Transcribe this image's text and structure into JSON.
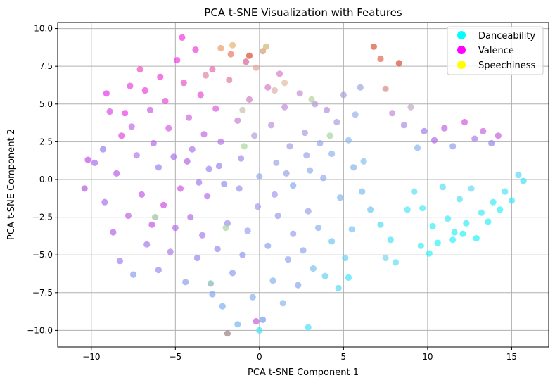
{
  "chart_data": {
    "type": "scatter",
    "title": "PCA t-SNE Visualization with Features",
    "xlabel": "PCA t-SNE Component 1",
    "ylabel": "PCA t-SNE Component 2",
    "xlim": [
      -12,
      17.2
    ],
    "ylim": [
      -11.1,
      10.4
    ],
    "xticks": [
      -10,
      -5,
      0,
      5,
      10,
      15
    ],
    "yticks": [
      -10.0,
      -7.5,
      -5.0,
      -2.5,
      0.0,
      2.5,
      5.0,
      7.5,
      10.0
    ],
    "xtick_labels": [
      "−10",
      "−5",
      "0",
      "5",
      "10",
      "15"
    ],
    "ytick_labels": [
      "−10.0",
      "−7.5",
      "−5.0",
      "−2.5",
      "0.0",
      "2.5",
      "5.0",
      "7.5",
      "10.0"
    ],
    "grid": true,
    "legend_position": "top-right",
    "legend": [
      {
        "label": "Danceability",
        "color": "#00ffff"
      },
      {
        "label": "Valence",
        "color": "#ff00ff"
      },
      {
        "label": "Speechiness",
        "color": "#ffff00"
      }
    ],
    "point_alpha": 0.7,
    "series": [
      {
        "name": "",
        "points": [
          [
            -10.2,
            1.3,
            "#c64fe6"
          ],
          [
            -10.4,
            -0.6,
            "#b05be0"
          ],
          [
            -9.8,
            1.1,
            "#a86ee8"
          ],
          [
            -9.3,
            2.0,
            "#9a7ef0"
          ],
          [
            -9.1,
            5.7,
            "#e23be9"
          ],
          [
            -8.9,
            4.5,
            "#d450e4"
          ],
          [
            -8.5,
            0.4,
            "#bb5ce9"
          ],
          [
            -8.2,
            2.9,
            "#e04ad6"
          ],
          [
            -8.0,
            4.4,
            "#f03ce8"
          ],
          [
            -7.7,
            6.2,
            "#e548d8"
          ],
          [
            -7.6,
            3.5,
            "#c36ee4"
          ],
          [
            -7.3,
            1.6,
            "#b47bec"
          ],
          [
            -7.1,
            7.3,
            "#f050c0"
          ],
          [
            -6.8,
            5.9,
            "#ea45e0"
          ],
          [
            -6.5,
            4.6,
            "#c85fe2"
          ],
          [
            -6.3,
            2.4,
            "#b76aea"
          ],
          [
            -6.0,
            0.8,
            "#9b82ee"
          ],
          [
            -5.9,
            6.8,
            "#f140d8"
          ],
          [
            -5.6,
            5.2,
            "#e74bd6"
          ],
          [
            -5.4,
            3.4,
            "#d45ce2"
          ],
          [
            -5.1,
            1.5,
            "#aa74ea"
          ],
          [
            -4.9,
            7.9,
            "#f23ce8"
          ],
          [
            -4.6,
            9.4,
            "#f538de"
          ],
          [
            -4.5,
            6.4,
            "#ea56c8"
          ],
          [
            -4.2,
            4.1,
            "#cf66e0"
          ],
          [
            -4.0,
            2.0,
            "#a978ed"
          ],
          [
            -3.8,
            8.6,
            "#ec42da"
          ],
          [
            -3.5,
            5.6,
            "#e44fd4"
          ],
          [
            -3.3,
            3.0,
            "#c468e6"
          ],
          [
            -3.0,
            0.7,
            "#9d84ef"
          ],
          [
            -2.8,
            7.3,
            "#e86ab0"
          ],
          [
            -2.6,
            4.7,
            "#d75ce0"
          ],
          [
            -2.3,
            2.5,
            "#bb73ea"
          ],
          [
            -2.1,
            -0.3,
            "#8f92f2"
          ],
          [
            -1.8,
            6.6,
            "#e17a9f"
          ],
          [
            -1.6,
            8.9,
            "#e8b070"
          ],
          [
            -1.3,
            3.9,
            "#c982d2"
          ],
          [
            -1.1,
            1.4,
            "#a58ae8"
          ],
          [
            -0.8,
            7.8,
            "#dc5f97"
          ],
          [
            -0.6,
            5.3,
            "#cf7fc4"
          ],
          [
            -0.3,
            2.9,
            "#b3a0d8"
          ],
          [
            0.0,
            0.2,
            "#96a8ea"
          ],
          [
            0.2,
            8.5,
            "#d0a070"
          ],
          [
            0.5,
            6.1,
            "#d87ac4"
          ],
          [
            0.7,
            3.6,
            "#b993d8"
          ],
          [
            1.0,
            1.1,
            "#a0a4e8"
          ],
          [
            1.2,
            7.0,
            "#d480c6"
          ],
          [
            1.5,
            4.8,
            "#bf8ed8"
          ],
          [
            1.8,
            2.2,
            "#a2a0e6"
          ],
          [
            2.0,
            -0.4,
            "#8aaaf2"
          ],
          [
            2.4,
            5.7,
            "#c48fd0"
          ],
          [
            2.7,
            3.1,
            "#a89ee2"
          ],
          [
            3.0,
            0.6,
            "#8fb0ee"
          ],
          [
            3.3,
            5.0,
            "#b498d6"
          ],
          [
            3.6,
            2.4,
            "#9aa8e8"
          ],
          [
            4.0,
            4.6,
            "#b88fd6"
          ],
          [
            4.3,
            1.7,
            "#90b4ee"
          ],
          [
            4.6,
            3.8,
            "#a4a2e0"
          ],
          [
            5.0,
            5.6,
            "#a9a0da"
          ],
          [
            5.3,
            2.6,
            "#8ebaf0"
          ],
          [
            5.7,
            4.3,
            "#9cb1e6"
          ],
          [
            6.0,
            6.1,
            "#a2a6dd"
          ],
          [
            6.2,
            1.2,
            "#86c2f2"
          ],
          [
            6.8,
            8.8,
            "#d7553d"
          ],
          [
            7.2,
            8.0,
            "#e06a52"
          ],
          [
            7.5,
            6.0,
            "#d68a7f"
          ],
          [
            7.9,
            4.4,
            "#c28bd6"
          ],
          [
            8.3,
            7.7,
            "#d84d33"
          ],
          [
            8.6,
            3.6,
            "#aa92e0"
          ],
          [
            9.0,
            4.8,
            "#c5a8c8"
          ],
          [
            9.4,
            2.1,
            "#8bb5ef"
          ],
          [
            9.8,
            3.2,
            "#a27ee8"
          ],
          [
            10.4,
            2.6,
            "#b06ee2"
          ],
          [
            11.0,
            3.4,
            "#c467e0"
          ],
          [
            11.5,
            2.2,
            "#8f9cf0"
          ],
          [
            12.2,
            3.8,
            "#d457dc"
          ],
          [
            12.8,
            2.7,
            "#ab7ce8"
          ],
          [
            13.3,
            3.2,
            "#c66ad7"
          ],
          [
            13.8,
            2.4,
            "#9a84ee"
          ],
          [
            14.2,
            2.9,
            "#c85fe0"
          ],
          [
            8.8,
            -2.0,
            "#4be7f6"
          ],
          [
            9.2,
            -0.8,
            "#5ae0f6"
          ],
          [
            9.7,
            -1.9,
            "#48ecf4"
          ],
          [
            10.3,
            -3.1,
            "#36f0f7"
          ],
          [
            10.6,
            -4.2,
            "#2cf2f8"
          ],
          [
            10.9,
            -0.5,
            "#58e0f6"
          ],
          [
            11.2,
            -2.6,
            "#44eaf6"
          ],
          [
            11.6,
            -3.5,
            "#2ef2f6"
          ],
          [
            11.9,
            -1.3,
            "#52e2f6"
          ],
          [
            12.3,
            -2.9,
            "#3ae8f6"
          ],
          [
            12.6,
            -0.6,
            "#6ad8f4"
          ],
          [
            12.9,
            -3.9,
            "#22f4f6"
          ],
          [
            13.2,
            -2.2,
            "#44e8f6"
          ],
          [
            13.6,
            -2.8,
            "#2ef0f6"
          ],
          [
            13.9,
            -1.5,
            "#3eeaf6"
          ],
          [
            14.3,
            -2.0,
            "#2ef2f6"
          ],
          [
            14.6,
            -0.8,
            "#50e2f6"
          ],
          [
            15.0,
            -1.4,
            "#3ae8f6"
          ],
          [
            15.4,
            0.3,
            "#5ad8f4"
          ],
          [
            15.7,
            -0.1,
            "#4adff4"
          ],
          [
            7.2,
            -3.0,
            "#56dcf4"
          ],
          [
            7.8,
            -4.0,
            "#46e5f6"
          ],
          [
            7.5,
            -5.2,
            "#7ad8ec"
          ],
          [
            8.1,
            -5.5,
            "#5ee0f0"
          ],
          [
            9.6,
            -4.4,
            "#38eef6"
          ],
          [
            10.1,
            -4.9,
            "#2ef2f7"
          ],
          [
            11.5,
            -4.0,
            "#30f0f7"
          ],
          [
            12.1,
            -3.6,
            "#2cf2f6"
          ],
          [
            6.6,
            -2.0,
            "#72c6f0"
          ],
          [
            6.1,
            -0.8,
            "#80bcf0"
          ],
          [
            -9.2,
            -1.5,
            "#a772ea"
          ],
          [
            -8.7,
            -3.5,
            "#b664e6"
          ],
          [
            -8.3,
            -5.4,
            "#9f82ee"
          ],
          [
            -7.8,
            -2.4,
            "#bd63e6"
          ],
          [
            -7.5,
            -6.3,
            "#8c9ef0"
          ],
          [
            -7.0,
            -1.0,
            "#c25ee4"
          ],
          [
            -6.7,
            -4.3,
            "#a77aea"
          ],
          [
            -6.4,
            -3.0,
            "#c658e4"
          ],
          [
            -6.0,
            -6.0,
            "#9890ef"
          ],
          [
            -5.7,
            -1.7,
            "#d04ee2"
          ],
          [
            -5.3,
            -4.8,
            "#a97ae8"
          ],
          [
            -5.0,
            -3.2,
            "#b96fe8"
          ],
          [
            -4.7,
            -0.6,
            "#cf56e2"
          ],
          [
            -4.4,
            -6.8,
            "#8e9ef0"
          ],
          [
            -4.1,
            -2.5,
            "#b06ee8"
          ],
          [
            -3.7,
            -5.2,
            "#9a88ee"
          ],
          [
            -3.4,
            -3.7,
            "#a97eea"
          ],
          [
            -3.1,
            -1.1,
            "#b86ae8"
          ],
          [
            -2.8,
            -7.6,
            "#86a6f2"
          ],
          [
            -2.5,
            -4.6,
            "#9b8cee"
          ],
          [
            -2.2,
            -8.4,
            "#7fb0f2"
          ],
          [
            -1.9,
            -2.9,
            "#9d90ee"
          ],
          [
            -1.6,
            -6.2,
            "#8c9ef0"
          ],
          [
            -1.3,
            -9.6,
            "#7ab6f2"
          ],
          [
            -1.0,
            -5.0,
            "#9296ee"
          ],
          [
            -0.7,
            -3.4,
            "#98a2ee"
          ],
          [
            -0.4,
            -7.8,
            "#84b2ee"
          ],
          [
            -0.1,
            -1.8,
            "#a49aea"
          ],
          [
            0.2,
            -9.3,
            "#7a9cf0"
          ],
          [
            0.5,
            -4.4,
            "#8fa4ee"
          ],
          [
            0.8,
            -6.7,
            "#86b6ee"
          ],
          [
            1.1,
            -2.4,
            "#9c9cea"
          ],
          [
            1.4,
            -8.2,
            "#8cb8ec"
          ],
          [
            1.7,
            -5.3,
            "#90a6ee"
          ],
          [
            2.0,
            -3.6,
            "#98a0ec"
          ],
          [
            2.3,
            -7.0,
            "#8aa8f0"
          ],
          [
            2.6,
            -4.7,
            "#8fa8ee"
          ],
          [
            2.9,
            -2.1,
            "#9aa4ea"
          ],
          [
            3.2,
            -5.9,
            "#82c0ee"
          ],
          [
            3.5,
            -3.2,
            "#8ab4f0"
          ],
          [
            3.9,
            -6.4,
            "#64d2f2"
          ],
          [
            4.3,
            -4.1,
            "#74c6f2"
          ],
          [
            4.7,
            -7.2,
            "#56dcf4"
          ],
          [
            5.1,
            -5.2,
            "#66d4f2"
          ],
          [
            5.5,
            -3.3,
            "#7ac4f0"
          ],
          [
            2.9,
            -9.8,
            "#48e6f6"
          ],
          [
            0.0,
            -10.0,
            "#44e4f6"
          ],
          [
            -1.9,
            -10.2,
            "#9a8080"
          ],
          [
            -0.2,
            -9.4,
            "#c65ce0"
          ],
          [
            5.3,
            -6.5,
            "#40e6f6"
          ],
          [
            -4.3,
            1.2,
            "#b266e6"
          ],
          [
            -3.6,
            -0.2,
            "#a77aea"
          ],
          [
            -2.4,
            0.9,
            "#9e84ec"
          ],
          [
            -1.2,
            -0.6,
            "#9a94ec"
          ],
          [
            1.6,
            0.4,
            "#9aa4e8"
          ],
          [
            2.8,
            1.6,
            "#9ea4e6"
          ],
          [
            3.8,
            0.1,
            "#92aeee"
          ],
          [
            4.8,
            -1.2,
            "#86b6f0"
          ],
          [
            5.6,
            0.8,
            "#8cb4ee"
          ],
          [
            0.9,
            -1.0,
            "#a69ae8"
          ],
          [
            -0.6,
            8.2,
            "#d74e2e"
          ],
          [
            -0.2,
            7.4,
            "#e2a4a0"
          ],
          [
            0.4,
            8.8,
            "#d4b470"
          ],
          [
            -1.7,
            8.3,
            "#e87a6a"
          ],
          [
            -2.3,
            8.7,
            "#ee9d6c"
          ],
          [
            1.5,
            6.4,
            "#e2bca0"
          ],
          [
            -3.2,
            6.9,
            "#e482a8"
          ],
          [
            0.9,
            5.9,
            "#d9b3a8"
          ],
          [
            -1.0,
            4.6,
            "#c8c0b0"
          ],
          [
            3.1,
            5.3,
            "#b8d0a0"
          ],
          [
            -2.0,
            -3.2,
            "#a8d8a0"
          ],
          [
            -0.9,
            2.2,
            "#a8d89a"
          ],
          [
            4.2,
            2.9,
            "#a6d49c"
          ],
          [
            -6.2,
            -2.5,
            "#9cc09c"
          ],
          [
            -2.9,
            -6.9,
            "#80b8b0"
          ]
        ]
      }
    ]
  }
}
